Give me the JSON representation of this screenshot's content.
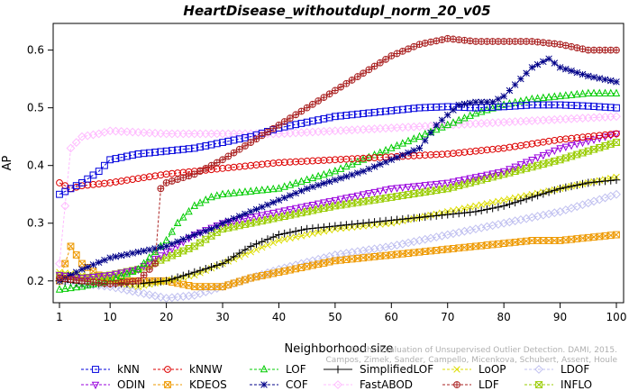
{
  "chart_data": {
    "type": "line",
    "title": "HeartDisease_withoutdupl_norm_20_v05",
    "xlabel": "Neighborhood size",
    "ylabel": "AP",
    "xlim": [
      1,
      100
    ],
    "ylim": [
      0.17,
      0.64
    ],
    "x_ticks": [
      1,
      10,
      20,
      30,
      40,
      50,
      60,
      70,
      80,
      90,
      100
    ],
    "y_ticks": [
      0.2,
      0.3,
      0.4,
      0.5,
      0.6
    ],
    "grid": false,
    "legend_position": "bottom",
    "series": [
      {
        "name": "kNN",
        "color": "#0000dd",
        "marker": "square",
        "line": "dashed",
        "points": [
          [
            1,
            0.35
          ],
          [
            3,
            0.36
          ],
          [
            5,
            0.37
          ],
          [
            8,
            0.39
          ],
          [
            10,
            0.41
          ],
          [
            15,
            0.42
          ],
          [
            20,
            0.425
          ],
          [
            25,
            0.43
          ],
          [
            30,
            0.44
          ],
          [
            35,
            0.45
          ],
          [
            40,
            0.465
          ],
          [
            45,
            0.475
          ],
          [
            50,
            0.485
          ],
          [
            55,
            0.49
          ],
          [
            60,
            0.495
          ],
          [
            65,
            0.5
          ],
          [
            70,
            0.502
          ],
          [
            75,
            0.5
          ],
          [
            80,
            0.502
          ],
          [
            85,
            0.505
          ],
          [
            90,
            0.505
          ],
          [
            95,
            0.503
          ],
          [
            100,
            0.5
          ]
        ]
      },
      {
        "name": "kNNW",
        "color": "#dd0000",
        "marker": "circle",
        "line": "dashed",
        "points": [
          [
            1,
            0.37
          ],
          [
            3,
            0.36
          ],
          [
            5,
            0.365
          ],
          [
            10,
            0.37
          ],
          [
            20,
            0.385
          ],
          [
            30,
            0.395
          ],
          [
            40,
            0.405
          ],
          [
            50,
            0.41
          ],
          [
            60,
            0.415
          ],
          [
            70,
            0.42
          ],
          [
            80,
            0.43
          ],
          [
            90,
            0.445
          ],
          [
            100,
            0.455
          ]
        ]
      },
      {
        "name": "LOF",
        "color": "#00cc00",
        "marker": "triangle-up",
        "line": "dashed",
        "points": [
          [
            1,
            0.185
          ],
          [
            5,
            0.19
          ],
          [
            10,
            0.2
          ],
          [
            15,
            0.22
          ],
          [
            18,
            0.25
          ],
          [
            20,
            0.27
          ],
          [
            22,
            0.3
          ],
          [
            25,
            0.33
          ],
          [
            28,
            0.345
          ],
          [
            30,
            0.35
          ],
          [
            40,
            0.36
          ],
          [
            50,
            0.39
          ],
          [
            60,
            0.43
          ],
          [
            65,
            0.45
          ],
          [
            70,
            0.47
          ],
          [
            75,
            0.49
          ],
          [
            80,
            0.505
          ],
          [
            85,
            0.515
          ],
          [
            90,
            0.52
          ],
          [
            95,
            0.525
          ],
          [
            100,
            0.525
          ]
        ]
      },
      {
        "name": "SimplifiedLOF",
        "color": "#000000",
        "marker": "plus",
        "line": "solid",
        "points": [
          [
            1,
            0.2
          ],
          [
            5,
            0.195
          ],
          [
            10,
            0.195
          ],
          [
            15,
            0.195
          ],
          [
            20,
            0.2
          ],
          [
            25,
            0.215
          ],
          [
            30,
            0.23
          ],
          [
            35,
            0.26
          ],
          [
            40,
            0.28
          ],
          [
            45,
            0.29
          ],
          [
            50,
            0.295
          ],
          [
            55,
            0.3
          ],
          [
            60,
            0.305
          ],
          [
            65,
            0.31
          ],
          [
            70,
            0.315
          ],
          [
            75,
            0.32
          ],
          [
            80,
            0.33
          ],
          [
            85,
            0.345
          ],
          [
            90,
            0.36
          ],
          [
            95,
            0.37
          ],
          [
            100,
            0.375
          ]
        ]
      },
      {
        "name": "LoOP",
        "color": "#dddd00",
        "marker": "x",
        "line": "dashed",
        "points": [
          [
            1,
            0.215
          ],
          [
            5,
            0.21
          ],
          [
            10,
            0.2
          ],
          [
            15,
            0.19
          ],
          [
            20,
            0.2
          ],
          [
            25,
            0.21
          ],
          [
            30,
            0.23
          ],
          [
            40,
            0.27
          ],
          [
            50,
            0.29
          ],
          [
            60,
            0.3
          ],
          [
            70,
            0.32
          ],
          [
            80,
            0.34
          ],
          [
            90,
            0.36
          ],
          [
            100,
            0.38
          ]
        ]
      },
      {
        "name": "LDOF",
        "color": "#c0c0f0",
        "marker": "diamond",
        "line": "dashed",
        "points": [
          [
            1,
            0.2
          ],
          [
            5,
            0.195
          ],
          [
            10,
            0.19
          ],
          [
            15,
            0.18
          ],
          [
            20,
            0.17
          ],
          [
            25,
            0.175
          ],
          [
            30,
            0.19
          ],
          [
            40,
            0.22
          ],
          [
            50,
            0.245
          ],
          [
            60,
            0.26
          ],
          [
            70,
            0.28
          ],
          [
            80,
            0.3
          ],
          [
            90,
            0.32
          ],
          [
            100,
            0.35
          ]
        ]
      },
      {
        "name": "ODIN",
        "color": "#9900dd",
        "marker": "triangle-down",
        "line": "dashed",
        "points": [
          [
            1,
            0.21
          ],
          [
            5,
            0.205
          ],
          [
            10,
            0.21
          ],
          [
            15,
            0.22
          ],
          [
            20,
            0.25
          ],
          [
            25,
            0.28
          ],
          [
            30,
            0.3
          ],
          [
            40,
            0.32
          ],
          [
            50,
            0.34
          ],
          [
            60,
            0.36
          ],
          [
            70,
            0.37
          ],
          [
            80,
            0.39
          ],
          [
            90,
            0.43
          ],
          [
            100,
            0.455
          ]
        ]
      },
      {
        "name": "KDEOS",
        "color": "#ee9900",
        "marker": "square-x",
        "line": "dashed",
        "points": [
          [
            1,
            0.2
          ],
          [
            3,
            0.26
          ],
          [
            5,
            0.23
          ],
          [
            8,
            0.21
          ],
          [
            10,
            0.2
          ],
          [
            15,
            0.2
          ],
          [
            20,
            0.2
          ],
          [
            25,
            0.19
          ],
          [
            30,
            0.19
          ],
          [
            35,
            0.205
          ],
          [
            40,
            0.215
          ],
          [
            45,
            0.225
          ],
          [
            50,
            0.235
          ],
          [
            55,
            0.24
          ],
          [
            60,
            0.245
          ],
          [
            65,
            0.25
          ],
          [
            70,
            0.255
          ],
          [
            75,
            0.26
          ],
          [
            80,
            0.265
          ],
          [
            85,
            0.27
          ],
          [
            90,
            0.27
          ],
          [
            95,
            0.275
          ],
          [
            100,
            0.28
          ]
        ]
      },
      {
        "name": "COF",
        "color": "#000088",
        "marker": "star",
        "line": "dashed",
        "points": [
          [
            1,
            0.2
          ],
          [
            5,
            0.22
          ],
          [
            10,
            0.24
          ],
          [
            15,
            0.25
          ],
          [
            20,
            0.26
          ],
          [
            25,
            0.28
          ],
          [
            28,
            0.29
          ],
          [
            30,
            0.3
          ],
          [
            35,
            0.32
          ],
          [
            40,
            0.34
          ],
          [
            45,
            0.36
          ],
          [
            50,
            0.375
          ],
          [
            55,
            0.39
          ],
          [
            60,
            0.41
          ],
          [
            65,
            0.43
          ],
          [
            68,
            0.47
          ],
          [
            72,
            0.505
          ],
          [
            75,
            0.51
          ],
          [
            78,
            0.51
          ],
          [
            80,
            0.52
          ],
          [
            83,
            0.55
          ],
          [
            85,
            0.57
          ],
          [
            88,
            0.585
          ],
          [
            90,
            0.57
          ],
          [
            95,
            0.555
          ],
          [
            100,
            0.545
          ]
        ]
      },
      {
        "name": "FastABOD",
        "color": "#ffbbff",
        "marker": "diamond",
        "line": "dashed",
        "points": [
          [
            1,
            0.23
          ],
          [
            3,
            0.43
          ],
          [
            5,
            0.45
          ],
          [
            8,
            0.455
          ],
          [
            10,
            0.46
          ],
          [
            20,
            0.455
          ],
          [
            30,
            0.455
          ],
          [
            40,
            0.455
          ],
          [
            50,
            0.46
          ],
          [
            60,
            0.465
          ],
          [
            70,
            0.47
          ],
          [
            80,
            0.475
          ],
          [
            90,
            0.48
          ],
          [
            100,
            0.485
          ]
        ]
      },
      {
        "name": "LDF",
        "color": "#aa2222",
        "marker": "circle-plus",
        "line": "dashed",
        "points": [
          [
            1,
            0.205
          ],
          [
            5,
            0.2
          ],
          [
            10,
            0.195
          ],
          [
            15,
            0.2
          ],
          [
            18,
            0.23
          ],
          [
            19,
            0.36
          ],
          [
            20,
            0.37
          ],
          [
            25,
            0.385
          ],
          [
            30,
            0.41
          ],
          [
            35,
            0.44
          ],
          [
            40,
            0.47
          ],
          [
            45,
            0.5
          ],
          [
            50,
            0.53
          ],
          [
            55,
            0.56
          ],
          [
            60,
            0.59
          ],
          [
            65,
            0.61
          ],
          [
            70,
            0.62
          ],
          [
            75,
            0.615
          ],
          [
            80,
            0.615
          ],
          [
            85,
            0.615
          ],
          [
            90,
            0.61
          ],
          [
            95,
            0.6
          ],
          [
            100,
            0.6
          ]
        ]
      },
      {
        "name": "INFLO",
        "color": "#99cc00",
        "marker": "hourglass",
        "line": "dashed",
        "points": [
          [
            1,
            0.21
          ],
          [
            5,
            0.205
          ],
          [
            10,
            0.21
          ],
          [
            15,
            0.22
          ],
          [
            20,
            0.24
          ],
          [
            25,
            0.26
          ],
          [
            30,
            0.29
          ],
          [
            35,
            0.3
          ],
          [
            40,
            0.31
          ],
          [
            50,
            0.33
          ],
          [
            60,
            0.345
          ],
          [
            70,
            0.36
          ],
          [
            80,
            0.385
          ],
          [
            90,
            0.41
          ],
          [
            100,
            0.44
          ]
        ]
      }
    ],
    "legend_rows": [
      [
        "kNN",
        "kNNW",
        "LOF",
        "SimplifiedLOF",
        "LoOP",
        "LDOF"
      ],
      [
        "ODIN",
        "KDEOS",
        "COF",
        "FastABOD",
        "LDF",
        "INFLO"
      ]
    ],
    "watermark": [
      "On the Evaluation of Unsupervised Outlier Detection. DAMI, 2015.",
      "Campos, Zimek, Sander, Campello, Micenkova, Schubert, Assent, Houle"
    ]
  }
}
